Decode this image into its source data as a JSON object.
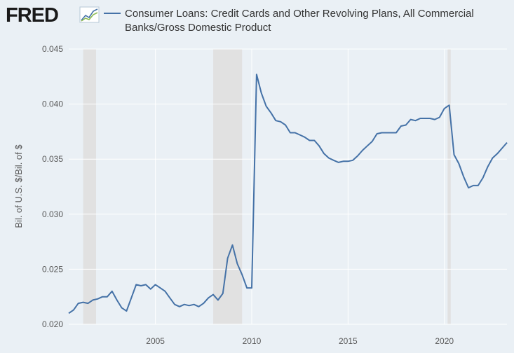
{
  "header": {
    "logo_text": "FRED",
    "logo_icon": "line-chart-icon"
  },
  "colors": {
    "series": "#4572a7",
    "recession": "#e1e1e1",
    "grid": "#ffffff",
    "logo": "#1a1a1a"
  },
  "chart_data": {
    "type": "line",
    "title": "",
    "xlabel": "",
    "ylabel": "Bil. of U.S. $/Bil. of $",
    "xlim": [
      2000.5,
      2023.25
    ],
    "ylim": [
      0.02,
      0.045
    ],
    "x_ticks": [
      2005,
      2010,
      2015,
      2020
    ],
    "y_ticks": [
      0.02,
      0.025,
      0.03,
      0.035,
      0.04,
      0.045
    ],
    "y_tick_labels": [
      "0.020",
      "0.025",
      "0.030",
      "0.035",
      "0.040",
      "0.045"
    ],
    "grid": true,
    "legend": "top",
    "recessions": [
      [
        2001.25,
        2001.92
      ],
      [
        2008.0,
        2009.5
      ],
      [
        2020.17,
        2020.33
      ]
    ],
    "series": [
      {
        "name": "Consumer Loans: Credit Cards and Other Revolving Plans, All Commercial Banks/Gross Domestic Product",
        "x": [
          2000.5,
          2000.75,
          2001.0,
          2001.25,
          2001.5,
          2001.75,
          2002.0,
          2002.25,
          2002.5,
          2002.75,
          2003.0,
          2003.25,
          2003.5,
          2003.75,
          2004.0,
          2004.25,
          2004.5,
          2004.75,
          2005.0,
          2005.25,
          2005.5,
          2005.75,
          2006.0,
          2006.25,
          2006.5,
          2006.75,
          2007.0,
          2007.25,
          2007.5,
          2007.75,
          2008.0,
          2008.25,
          2008.5,
          2008.75,
          2009.0,
          2009.25,
          2009.5,
          2009.75,
          2010.0,
          2010.25,
          2010.5,
          2010.75,
          2011.0,
          2011.25,
          2011.5,
          2011.75,
          2012.0,
          2012.25,
          2012.5,
          2012.75,
          2013.0,
          2013.25,
          2013.5,
          2013.75,
          2014.0,
          2014.25,
          2014.5,
          2014.75,
          2015.0,
          2015.25,
          2015.5,
          2015.75,
          2016.0,
          2016.25,
          2016.5,
          2016.75,
          2017.0,
          2017.25,
          2017.5,
          2017.75,
          2018.0,
          2018.25,
          2018.5,
          2018.75,
          2019.0,
          2019.25,
          2019.5,
          2019.75,
          2020.0,
          2020.25,
          2020.5,
          2020.75,
          2021.0,
          2021.25,
          2021.5,
          2021.75,
          2022.0,
          2022.25,
          2022.5,
          2022.75,
          2023.0,
          2023.25
        ],
        "values": [
          0.021,
          0.0213,
          0.0219,
          0.022,
          0.0219,
          0.0222,
          0.0223,
          0.0225,
          0.0225,
          0.023,
          0.0222,
          0.0215,
          0.0212,
          0.0224,
          0.0236,
          0.0235,
          0.0236,
          0.0232,
          0.0236,
          0.0233,
          0.023,
          0.0224,
          0.0218,
          0.0216,
          0.0218,
          0.0217,
          0.0218,
          0.0216,
          0.0219,
          0.0224,
          0.0227,
          0.0222,
          0.0228,
          0.026,
          0.0272,
          0.0255,
          0.0245,
          0.0233,
          0.0233,
          0.0427,
          0.041,
          0.0398,
          0.0392,
          0.0385,
          0.0384,
          0.0381,
          0.0374,
          0.0374,
          0.0372,
          0.037,
          0.0367,
          0.0367,
          0.0362,
          0.0355,
          0.0351,
          0.0349,
          0.0347,
          0.0348,
          0.0348,
          0.0349,
          0.0353,
          0.0358,
          0.0362,
          0.0366,
          0.0373,
          0.0374,
          0.0374,
          0.0374,
          0.0374,
          0.038,
          0.0381,
          0.0386,
          0.0385,
          0.0387,
          0.0387,
          0.0387,
          0.0386,
          0.0388,
          0.0396,
          0.0399,
          0.0354,
          0.0346,
          0.0334,
          0.0324,
          0.0326,
          0.0326,
          0.0333,
          0.0343,
          0.0351,
          0.0355,
          0.036,
          0.0365
        ]
      }
    ]
  }
}
